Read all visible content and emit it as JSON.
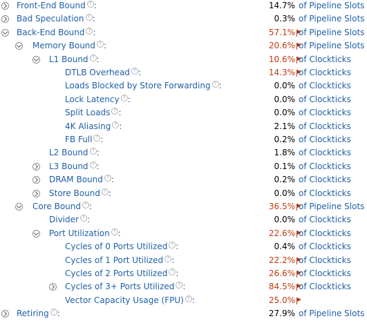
{
  "help_glyph": "?",
  "colors": {
    "link": "#1f5fa8",
    "highlight": "#c0390e",
    "normal_value": "#000000"
  },
  "rows": [
    {
      "label": "Front-End Bound",
      "level": 0,
      "toggle": "collapsed",
      "value": "14.7%",
      "highlight": false,
      "unit": "of Pipeline Slots"
    },
    {
      "label": "Bad Speculation",
      "level": 0,
      "toggle": "collapsed",
      "value": "0.3%",
      "highlight": false,
      "unit": "of Pipeline Slots"
    },
    {
      "label": "Back-End Bound",
      "level": 0,
      "toggle": "expanded",
      "value": "57.1%",
      "highlight": true,
      "unit": "of Pipeline Slots"
    },
    {
      "label": "Memory Bound",
      "level": 1,
      "toggle": "expanded",
      "value": "20.6%",
      "highlight": true,
      "unit": "of Pipeline Slots"
    },
    {
      "label": "L1 Bound",
      "level": 2,
      "toggle": "expanded",
      "value": "10.6%",
      "highlight": true,
      "unit": "of Clockticks"
    },
    {
      "label": "DTLB Overhead",
      "level": 3,
      "toggle": "none",
      "value": "14.3%",
      "highlight": true,
      "unit": "of Clockticks"
    },
    {
      "label": "Loads Blocked by Store Forwarding",
      "level": 3,
      "toggle": "none",
      "value": "0.0%",
      "highlight": false,
      "unit": "of Clockticks"
    },
    {
      "label": "Lock Latency",
      "level": 3,
      "toggle": "none",
      "value": "0.0%",
      "highlight": false,
      "unit": "of Clockticks"
    },
    {
      "label": "Split Loads",
      "level": 3,
      "toggle": "none",
      "value": "0.0%",
      "highlight": false,
      "unit": "of Clockticks"
    },
    {
      "label": "4K Aliasing",
      "level": 3,
      "toggle": "none",
      "value": "2.1%",
      "highlight": false,
      "unit": "of Clockticks"
    },
    {
      "label": "FB Full",
      "level": 3,
      "toggle": "none",
      "value": "0.2%",
      "highlight": false,
      "unit": "of Clockticks"
    },
    {
      "label": "L2 Bound",
      "level": 2,
      "toggle": "none",
      "value": "1.8%",
      "highlight": false,
      "unit": "of Clockticks"
    },
    {
      "label": "L3 Bound",
      "level": 2,
      "toggle": "collapsed",
      "value": "0.1%",
      "highlight": false,
      "unit": "of Clockticks"
    },
    {
      "label": "DRAM Bound",
      "level": 2,
      "toggle": "collapsed",
      "value": "0.2%",
      "highlight": false,
      "unit": "of Clockticks"
    },
    {
      "label": "Store Bound",
      "level": 2,
      "toggle": "collapsed",
      "value": "0.0%",
      "highlight": false,
      "unit": "of Clockticks"
    },
    {
      "label": "Core Bound",
      "level": 1,
      "toggle": "expanded",
      "value": "36.5%",
      "highlight": true,
      "unit": "of Pipeline Slots"
    },
    {
      "label": "Divider",
      "level": 2,
      "toggle": "none",
      "value": "0.0%",
      "highlight": false,
      "unit": "of Clockticks"
    },
    {
      "label": "Port Utilization",
      "level": 2,
      "toggle": "expanded",
      "value": "22.6%",
      "highlight": true,
      "unit": "of Clockticks"
    },
    {
      "label": "Cycles of 0 Ports Utilized",
      "level": 3,
      "toggle": "none",
      "value": "0.4%",
      "highlight": false,
      "unit": "of Clockticks"
    },
    {
      "label": "Cycles of 1 Port Utilized",
      "level": 3,
      "toggle": "none",
      "value": "22.2%",
      "highlight": true,
      "unit": "of Clockticks"
    },
    {
      "label": "Cycles of 2 Ports Utilized",
      "level": 3,
      "toggle": "none",
      "value": "26.6%",
      "highlight": true,
      "unit": "of Clockticks"
    },
    {
      "label": "Cycles of 3+ Ports Utilized",
      "level": 3,
      "toggle": "collapsed",
      "value": "84.5%",
      "highlight": true,
      "unit": "of Clockticks"
    },
    {
      "label": "Vector Capacity Usage (FPU)",
      "level": 3,
      "toggle": "none",
      "value": "25.0%",
      "highlight": true,
      "unit": ""
    },
    {
      "label": "Retiring",
      "level": 0,
      "toggle": "collapsed",
      "value": "27.9%",
      "highlight": false,
      "unit": "of Pipeline Slots"
    }
  ]
}
